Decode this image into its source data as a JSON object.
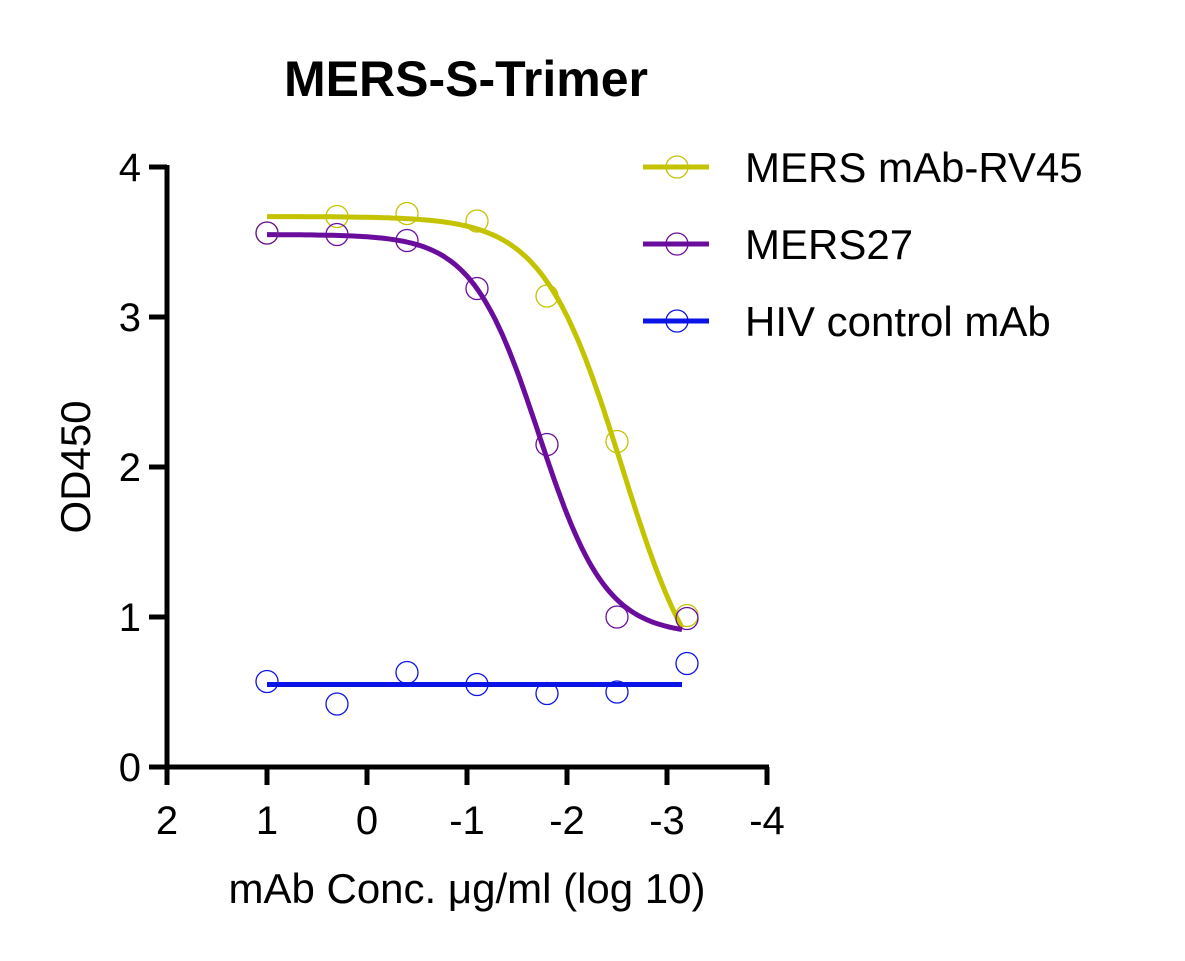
{
  "chart_data": {
    "type": "scatter",
    "title": "MERS-S-Trimer",
    "xlabel": "mAb Conc. μg/ml (log 10)",
    "ylabel": "OD450",
    "xlim": [
      2,
      -4
    ],
    "ylim": [
      0,
      4
    ],
    "x_reversed": true,
    "xticks": [
      2,
      1,
      0,
      -1,
      -2,
      -3,
      -4
    ],
    "xtick_labels": [
      "2",
      "1",
      "0",
      "-1",
      "-2",
      "-3",
      "-4"
    ],
    "yticks": [
      0,
      1,
      2,
      3,
      4
    ],
    "ytick_labels": [
      "0",
      "1",
      "2",
      "3",
      "4"
    ],
    "grid": false,
    "legend_position": "top-right",
    "series": [
      {
        "name": "MERS mAb-RV45",
        "color": "#c3c300",
        "x": [
          1.0,
          0.3,
          -0.4,
          -1.1,
          -1.8,
          -2.5,
          -3.2
        ],
        "y": [
          3.56,
          3.67,
          3.69,
          3.64,
          3.14,
          2.17,
          1.01
        ],
        "fit": {
          "model": "4PL",
          "top": 3.67,
          "bottom": 0.33,
          "logEC50": -2.55,
          "hill": 1.1,
          "x_range": [
            1.0,
            -3.15
          ]
        }
      },
      {
        "name": "MERS27",
        "color": "#6a0d9c",
        "x": [
          1.0,
          0.3,
          -0.4,
          -1.1,
          -1.8,
          -2.5,
          -3.2
        ],
        "y": [
          3.56,
          3.55,
          3.51,
          3.19,
          2.15,
          1.0,
          0.99
        ],
        "fit": {
          "model": "4PL",
          "top": 3.55,
          "bottom": 0.88,
          "logEC50": -1.72,
          "hill": 1.3,
          "x_range": [
            1.0,
            -3.15
          ]
        }
      },
      {
        "name": "HIV control mAb",
        "color": "#0a14e6",
        "x": [
          1.0,
          0.3,
          -0.4,
          -1.1,
          -1.8,
          -2.5,
          -3.2
        ],
        "y": [
          0.57,
          0.42,
          0.63,
          0.55,
          0.49,
          0.5,
          0.69
        ],
        "fit": {
          "model": "constant",
          "value": 0.55,
          "x_range": [
            1.0,
            -3.15
          ]
        }
      }
    ]
  }
}
